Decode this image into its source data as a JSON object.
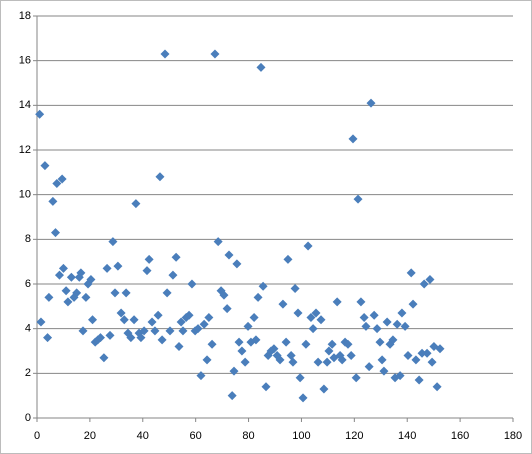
{
  "chart_data": {
    "type": "scatter",
    "marker": "diamond",
    "color": "#4a7ebb",
    "grid": true,
    "legend": false,
    "x": [
      1,
      1.5,
      3,
      4,
      4.5,
      6,
      7,
      7.5,
      8.5,
      9.5,
      10,
      11,
      11.7,
      13,
      14,
      15,
      16,
      16.6,
      17.4,
      18.5,
      19.3,
      20.4,
      21,
      22,
      23,
      24,
      25.3,
      26.5,
      27.6,
      28.7,
      29.5,
      30.6,
      31.8,
      33,
      33.7,
      34.4,
      35.5,
      36.7,
      37.4,
      38.6,
      39.3,
      40.5,
      41.6,
      42.4,
      43.5,
      44.6,
      45.8,
      46.5,
      47.3,
      48.4,
      49.2,
      50.3,
      51.4,
      52.6,
      53.7,
      54.5,
      55.2,
      56.4,
      57.5,
      58.6,
      59.8,
      60.9,
      62,
      63.2,
      64.3,
      65,
      66.2,
      67.3,
      68.5,
      69.6,
      70.7,
      71.9,
      72.6,
      73.8,
      74.5,
      75.6,
      76.4,
      77.5,
      78.7,
      79.8,
      80.9,
      82.1,
      82.8,
      83.6,
      84.7,
      85.5,
      86.6,
      87.4,
      88.5,
      89.6,
      90.8,
      91.9,
      93,
      94.2,
      94.9,
      96.1,
      96.8,
      97.6,
      98.7,
      99.5,
      100.6,
      101.7,
      102.5,
      103.6,
      104.4,
      105.5,
      106.3,
      107.4,
      108.5,
      109.7,
      110.4,
      111.6,
      112.3,
      113.5,
      114.6,
      115.4,
      116.5,
      117.6,
      118.8,
      119.5,
      120.7,
      121.4,
      122.5,
      123.7,
      124.4,
      125.6,
      126.3,
      127.5,
      128.6,
      129.7,
      130.5,
      131.2,
      132.4,
      133.5,
      134.6,
      135.4,
      136.2,
      137.3,
      138,
      139.2,
      140.3,
      141.5,
      142.2,
      143.3,
      144.5,
      145.6,
      146.4,
      147.5,
      148.6,
      149.4,
      150.1,
      151.3,
      152.4
    ],
    "values": [
      13.6,
      4.3,
      11.3,
      3.6,
      5.4,
      9.7,
      8.3,
      10.5,
      6.4,
      10.7,
      6.7,
      5.7,
      5.2,
      6.3,
      5.4,
      5.6,
      6.3,
      6.5,
      3.9,
      5.4,
      6.0,
      6.2,
      4.4,
      3.4,
      3.5,
      3.6,
      2.7,
      6.7,
      3.7,
      7.9,
      5.6,
      6.8,
      4.7,
      4.4,
      5.6,
      3.8,
      3.6,
      4.4,
      9.6,
      3.8,
      3.6,
      3.9,
      6.6,
      7.1,
      4.3,
      3.9,
      4.6,
      10.8,
      3.5,
      16.3,
      5.6,
      3.9,
      6.4,
      7.2,
      3.2,
      4.3,
      3.9,
      4.5,
      4.6,
      6.0,
      3.9,
      4.0,
      1.9,
      4.2,
      2.6,
      4.5,
      3.3,
      16.3,
      7.9,
      5.7,
      5.5,
      4.9,
      7.3,
      1.0,
      2.1,
      6.9,
      3.4,
      3.0,
      2.5,
      4.1,
      3.4,
      4.5,
      3.5,
      5.4,
      15.7,
      5.9,
      1.4,
      2.8,
      3.0,
      3.1,
      2.8,
      2.6,
      5.1,
      3.4,
      7.1,
      2.8,
      2.5,
      5.8,
      4.7,
      1.8,
      0.9,
      3.3,
      7.7,
      4.5,
      4.0,
      4.7,
      2.5,
      4.4,
      1.3,
      2.5,
      3.0,
      3.3,
      2.7,
      5.2,
      2.8,
      2.6,
      3.4,
      3.3,
      2.8,
      12.5,
      1.8,
      9.8,
      5.2,
      4.5,
      4.1,
      2.3,
      14.1,
      4.6,
      4.0,
      3.4,
      2.6,
      2.1,
      4.3,
      3.3,
      3.5,
      1.8,
      4.2,
      1.9,
      4.7,
      4.1,
      2.8,
      6.5,
      5.1,
      2.6,
      1.7,
      2.9,
      6.0,
      2.9,
      6.2,
      2.5,
      3.2,
      1.4,
      3.1
    ],
    "xlim": [
      0,
      180
    ],
    "xticks": [
      0,
      20,
      40,
      60,
      80,
      100,
      120,
      140,
      160,
      180
    ],
    "ylim": [
      0,
      18
    ],
    "yticks": [
      0,
      2,
      4,
      6,
      8,
      10,
      12,
      14,
      16,
      18
    ]
  }
}
